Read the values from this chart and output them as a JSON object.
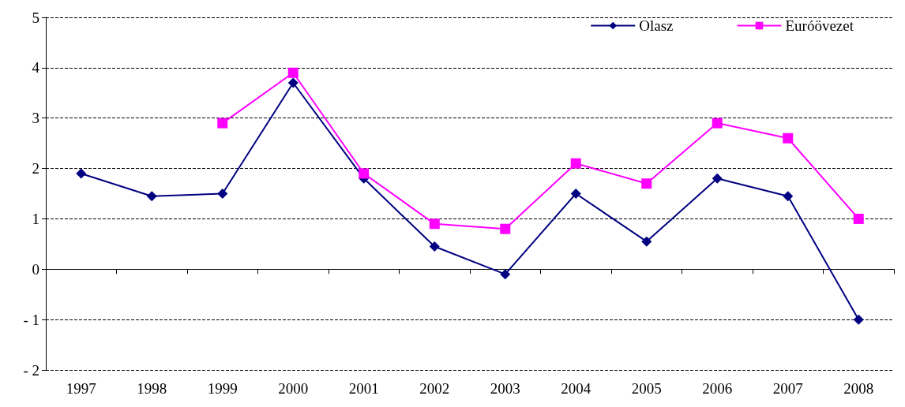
{
  "chart_data": {
    "type": "line",
    "categories": [
      "1997",
      "1998",
      "1999",
      "2000",
      "2001",
      "2002",
      "2003",
      "2004",
      "2005",
      "2006",
      "2007",
      "2008"
    ],
    "series": [
      {
        "name": "Olasz",
        "color": "#000080",
        "marker": "diamond",
        "values": [
          1.9,
          1.45,
          1.5,
          3.7,
          1.8,
          0.45,
          -0.1,
          1.5,
          0.55,
          1.8,
          1.45,
          -1.0
        ]
      },
      {
        "name": "Euróövezet",
        "color": "#ff00ff",
        "marker": "square",
        "values": [
          null,
          null,
          2.9,
          3.9,
          1.9,
          0.9,
          0.8,
          2.1,
          1.7,
          2.9,
          2.6,
          1.0
        ]
      }
    ],
    "ylim": [
      -2,
      5
    ],
    "yticks": [
      -2,
      -1,
      0,
      1,
      2,
      3,
      4,
      5
    ],
    "grid": "y",
    "legend": "top right",
    "line_style": "solid"
  }
}
